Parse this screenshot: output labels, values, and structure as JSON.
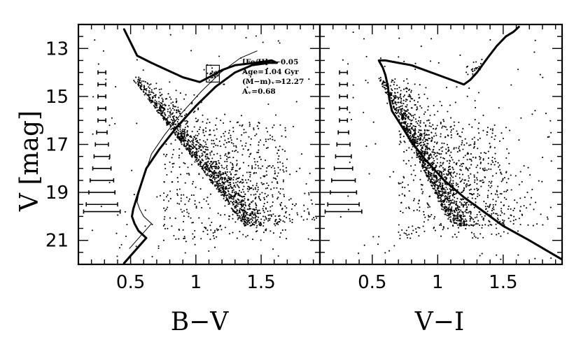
{
  "chart_data": [
    {
      "type": "scatter",
      "panel": "left",
      "xlabel": "B−V",
      "ylabel": "V [mag]",
      "xlim": [
        0.1,
        1.95
      ],
      "ylim": [
        22.0,
        12.0
      ],
      "y_inverted": true,
      "x_ticks": [
        0.5,
        1,
        1.5
      ],
      "x_tick_labels": [
        "0.5",
        "1",
        "1.5"
      ],
      "y_ticks": [
        13,
        15,
        17,
        19,
        21
      ],
      "y_tick_labels": [
        "13",
        "15",
        "17",
        "19",
        "21"
      ],
      "annotations": [
        "[Fe/H]=−0.05",
        "Age=1.04 Gyr",
        "(M−m)ᵥ=12.27",
        "Aᵥ=0.68"
      ],
      "box": {
        "x": [
          1.08,
          1.18
        ],
        "y": [
          13.7,
          14.4
        ]
      },
      "isochrone": {
        "x": [
          0.45,
          0.62,
          0.56,
          0.53,
          0.51,
          0.52,
          0.56,
          0.62,
          0.72,
          0.85,
          1.0,
          1.15,
          1.3,
          1.43,
          1.56,
          1.62,
          1.58,
          1.45,
          1.3,
          1.2,
          1.1,
          1.03,
          0.9,
          0.78,
          0.66,
          0.55,
          0.45
        ],
        "y": [
          21.95,
          20.9,
          20.6,
          20.3,
          20.0,
          19.7,
          19.0,
          18.0,
          17.2,
          16.3,
          15.4,
          14.6,
          14.0,
          13.7,
          13.6,
          13.6,
          13.5,
          13.6,
          13.7,
          13.9,
          14.2,
          14.4,
          14.2,
          13.9,
          13.6,
          13.3,
          12.2
        ]
      },
      "error_bars": {
        "x": 0.28,
        "v": [
          14.0,
          14.5,
          15.0,
          15.5,
          16.0,
          16.5,
          17.0,
          17.5,
          18.0,
          18.5,
          19.0,
          19.5,
          19.8
        ],
        "err": [
          0.03,
          0.03,
          0.03,
          0.03,
          0.03,
          0.04,
          0.05,
          0.06,
          0.07,
          0.09,
          0.1,
          0.12,
          0.14
        ]
      }
    },
    {
      "type": "scatter",
      "panel": "right",
      "xlabel": "V−I",
      "ylabel": "",
      "xlim": [
        0.1,
        1.95
      ],
      "ylim": [
        22.0,
        12.0
      ],
      "y_inverted": true,
      "x_ticks": [
        0.5,
        1,
        1.5
      ],
      "x_tick_labels": [
        "0.5",
        "1",
        "1.5"
      ],
      "y_ticks": [
        13,
        15,
        17,
        19,
        21
      ],
      "y_tick_labels": [],
      "isochrone": {
        "x": [
          1.95,
          1.7,
          1.5,
          1.35,
          1.2,
          1.05,
          0.9,
          0.8,
          0.72,
          0.65,
          0.63,
          0.62,
          0.6,
          0.58,
          0.56,
          0.55,
          0.6,
          0.7,
          0.8,
          0.9,
          1.0,
          1.1,
          1.2,
          1.25,
          1.3,
          1.38,
          1.45,
          1.52,
          1.58,
          1.62
        ],
        "y": [
          21.8,
          21.0,
          20.4,
          19.8,
          19.2,
          18.5,
          17.6,
          16.9,
          16.2,
          15.6,
          15.1,
          14.6,
          14.1,
          13.8,
          13.6,
          13.5,
          13.5,
          13.6,
          13.7,
          13.9,
          14.1,
          14.3,
          14.5,
          14.3,
          14.0,
          13.4,
          12.9,
          12.5,
          12.3,
          12.1
        ]
      },
      "error_bars": {
        "x": 0.28,
        "v": [
          14.0,
          14.5,
          15.0,
          15.5,
          16.0,
          16.5,
          17.0,
          17.5,
          18.0,
          18.5,
          19.0,
          19.5,
          19.8
        ],
        "err": [
          0.03,
          0.03,
          0.03,
          0.03,
          0.03,
          0.04,
          0.05,
          0.06,
          0.07,
          0.09,
          0.1,
          0.12,
          0.14
        ]
      }
    }
  ]
}
